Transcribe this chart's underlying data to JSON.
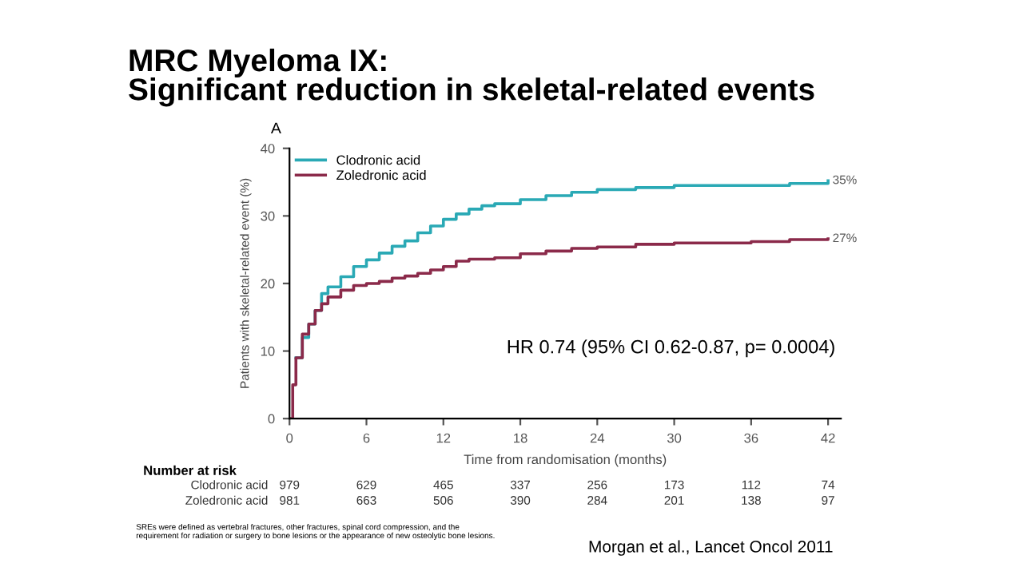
{
  "chart_data": {
    "type": "step",
    "title": "MRC Myeloma IX:\nSignificant reduction in skeletal-related events",
    "xlabel": "Time from randomisation (months)",
    "ylabel": "Patients with skeletal-related event (%)",
    "xlim": [
      0,
      43
    ],
    "ylim": [
      0,
      40
    ],
    "xticks": [
      0,
      6,
      12,
      18,
      24,
      30,
      36,
      42
    ],
    "yticks": [
      0,
      10,
      20,
      30,
      40
    ],
    "grid": false,
    "legend": "top left",
    "series": [
      {
        "name": "Clodronic acid",
        "color": "#2aa9b5",
        "x": [
          0.5,
          1,
          1.5,
          2,
          2.5,
          3,
          4,
          5,
          6,
          7,
          8,
          9,
          10,
          11,
          12,
          13,
          14,
          15,
          16,
          18,
          20,
          22,
          24,
          27,
          30,
          36,
          39,
          42
        ],
        "values": [
          9,
          12,
          14,
          16,
          18.5,
          19.5,
          21,
          22.5,
          23.5,
          24.5,
          25.5,
          26.3,
          27.5,
          28.5,
          29.5,
          30.3,
          31,
          31.5,
          31.8,
          32.4,
          33,
          33.5,
          33.9,
          34.2,
          34.5,
          34.5,
          34.8,
          35.2
        ]
      },
      {
        "name": "Zoledronic acid",
        "color": "#8b2a4a",
        "x": [
          0,
          0.25,
          0.5,
          1,
          1.5,
          2,
          2.5,
          3,
          4,
          5,
          6,
          7,
          8,
          9,
          10,
          11,
          12,
          13,
          14,
          16,
          18,
          20,
          22,
          24,
          27,
          30,
          36,
          39,
          42
        ],
        "values": [
          0,
          5,
          9,
          12.5,
          14,
          16,
          17,
          18,
          19,
          19.7,
          20,
          20.3,
          20.8,
          21.1,
          21.5,
          22,
          22.5,
          23.3,
          23.6,
          23.8,
          24.4,
          24.8,
          25.2,
          25.4,
          25.8,
          26,
          26.2,
          26.5,
          26.6
        ]
      }
    ],
    "annotations": [
      {
        "text": "35%",
        "x": 42,
        "y": 35.2
      },
      {
        "text": "27%",
        "x": 42,
        "y": 26.6
      },
      "HR 0.74 (95% CI 0.62-0.87, p= 0.0004)",
      "A",
      "Number at risk",
      "Clodronic acid",
      "979",
      "629",
      "465",
      "337",
      "256",
      "173",
      "112",
      "74",
      "Zoledronic acid",
      "981",
      "663",
      "506",
      "390",
      "284",
      "201",
      "138",
      "97",
      "SREs were defined as vertebral fractures, other fractures, spinal cord compression, and the\nrequirement for radiation or surgery to bone lesions or the appearance of new osteolytic bone lesions.",
      "Morgan et al., Lancet Oncol 2011"
    ]
  }
}
